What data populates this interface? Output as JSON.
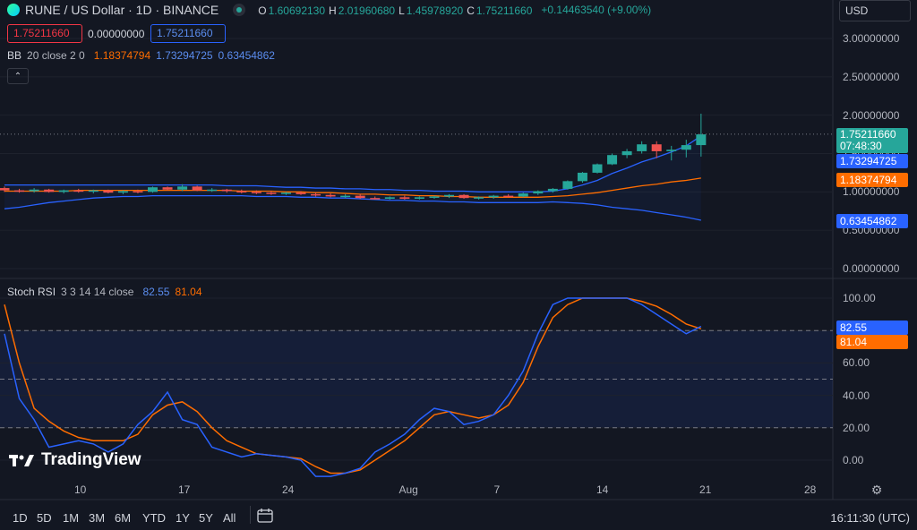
{
  "header": {
    "symbol": "RUNE / US Dollar · 1D · BINANCE",
    "ohlc": [
      {
        "label": "O",
        "value": "1.60692130"
      },
      {
        "label": "H",
        "value": "2.01960680"
      },
      {
        "label": "L",
        "value": "1.45978920"
      },
      {
        "label": "C",
        "value": "1.75211660"
      }
    ],
    "change": "+0.14463540 (+9.00%)",
    "sell_price": "1.75211660",
    "spread": "0.00000000",
    "buy_price": "1.75211660",
    "currency": "USD"
  },
  "indicators": {
    "bb": {
      "label": "BB",
      "params": "20 close 2 0",
      "basis": "1.18374794",
      "upper": "1.73294725",
      "lower": "0.63454862"
    },
    "stoch": {
      "label": "Stoch RSI",
      "params": "3 3 14 14 close",
      "k": "82.55",
      "d": "81.04"
    }
  },
  "price_axis": [
    "3.00000000",
    "2.50000000",
    "2.00000000",
    "1.50000000",
    "1.00000000",
    "0.50000000",
    "0.00000000"
  ],
  "price_tags": {
    "last": "1.75211660",
    "countdown": "07:48:30",
    "bb_upper": "1.73294725",
    "bb_basis": "1.18374794",
    "bb_lower": "0.63454862"
  },
  "stoch_axis": [
    "100.00",
    "80.00",
    "60.00",
    "40.00",
    "20.00",
    "0.00"
  ],
  "stoch_tags": {
    "k": "82.55",
    "d": "81.04"
  },
  "time_axis": [
    "10",
    "17",
    "24",
    "Aug",
    "7",
    "14",
    "21",
    "28"
  ],
  "timeframes": [
    "1D",
    "5D",
    "1M",
    "3M",
    "6M",
    "YTD",
    "1Y",
    "5Y",
    "All"
  ],
  "clock": "16:11:30 (UTC)",
  "logo_text": "TradingView",
  "colors": {
    "up": "#26a69a",
    "down": "#ef5350",
    "bb_band": "#2962ff",
    "bb_basis": "#ff6d00",
    "k_line": "#2962ff",
    "d_line": "#ff6d00"
  },
  "chart_data": {
    "type": "candlestick",
    "x": [
      "Jul 3",
      "Jul 4",
      "Jul 5",
      "Jul 6",
      "Jul 7",
      "Jul 8",
      "Jul 9",
      "Jul 10",
      "Jul 11",
      "Jul 12",
      "Jul 13",
      "Jul 14",
      "Jul 15",
      "Jul 16",
      "Jul 17",
      "Jul 18",
      "Jul 19",
      "Jul 20",
      "Jul 21",
      "Jul 22",
      "Jul 23",
      "Jul 24",
      "Jul 25",
      "Jul 26",
      "Jul 27",
      "Jul 28",
      "Jul 29",
      "Jul 30",
      "Jul 31",
      "Aug 1",
      "Aug 2",
      "Aug 3",
      "Aug 4",
      "Aug 5",
      "Aug 6",
      "Aug 7",
      "Aug 8",
      "Aug 9",
      "Aug 10",
      "Aug 11",
      "Aug 12",
      "Aug 13",
      "Aug 14",
      "Aug 15",
      "Aug 16",
      "Aug 17",
      "Aug 18",
      "Aug 19"
    ],
    "candles": [
      [
        1.05,
        1.07,
        1.0,
        1.02
      ],
      [
        1.02,
        1.04,
        0.99,
        1.01
      ],
      [
        1.01,
        1.05,
        0.99,
        1.03
      ],
      [
        1.03,
        1.04,
        0.99,
        1.0
      ],
      [
        1.0,
        1.03,
        0.98,
        1.02
      ],
      [
        1.02,
        1.04,
        0.99,
        1.01
      ],
      [
        1.01,
        1.03,
        0.98,
        1.02
      ],
      [
        1.02,
        1.03,
        0.98,
        0.99
      ],
      [
        0.99,
        1.02,
        0.97,
        1.01
      ],
      [
        1.01,
        1.03,
        0.98,
        1.0
      ],
      [
        1.0,
        1.07,
        0.99,
        1.06
      ],
      [
        1.06,
        1.07,
        1.02,
        1.03
      ],
      [
        1.03,
        1.1,
        1.01,
        1.07
      ],
      [
        1.07,
        1.08,
        1.01,
        1.02
      ],
      [
        1.02,
        1.05,
        1.0,
        1.03
      ],
      [
        1.03,
        1.04,
        0.99,
        1.01
      ],
      [
        1.01,
        1.03,
        0.98,
        1.0
      ],
      [
        1.0,
        1.02,
        0.97,
        0.99
      ],
      [
        0.99,
        1.01,
        0.96,
        0.98
      ],
      [
        0.98,
        1.0,
        0.96,
        0.99
      ],
      [
        0.99,
        1.01,
        0.96,
        0.97
      ],
      [
        0.97,
        0.99,
        0.94,
        0.96
      ],
      [
        0.96,
        0.98,
        0.93,
        0.94
      ],
      [
        0.94,
        0.97,
        0.92,
        0.95
      ],
      [
        0.95,
        0.97,
        0.91,
        0.92
      ],
      [
        0.92,
        0.94,
        0.9,
        0.91
      ],
      [
        0.91,
        0.94,
        0.9,
        0.93
      ],
      [
        0.93,
        0.95,
        0.9,
        0.91
      ],
      [
        0.91,
        0.94,
        0.9,
        0.93
      ],
      [
        0.93,
        0.95,
        0.91,
        0.94
      ],
      [
        0.94,
        0.97,
        0.92,
        0.96
      ],
      [
        0.96,
        0.97,
        0.91,
        0.92
      ],
      [
        0.92,
        0.94,
        0.9,
        0.93
      ],
      [
        0.93,
        0.96,
        0.91,
        0.95
      ],
      [
        0.95,
        0.97,
        0.93,
        0.94
      ],
      [
        0.94,
        0.99,
        0.93,
        0.98
      ],
      [
        0.98,
        1.02,
        0.96,
        1.01
      ],
      [
        1.01,
        1.05,
        0.99,
        1.04
      ],
      [
        1.04,
        1.15,
        1.03,
        1.14
      ],
      [
        1.14,
        1.26,
        1.12,
        1.25
      ],
      [
        1.25,
        1.37,
        1.24,
        1.36
      ],
      [
        1.36,
        1.5,
        1.35,
        1.48
      ],
      [
        1.48,
        1.56,
        1.44,
        1.53
      ],
      [
        1.53,
        1.66,
        1.5,
        1.62
      ],
      [
        1.62,
        1.66,
        1.44,
        1.53
      ],
      [
        1.53,
        1.6,
        1.41,
        1.55
      ],
      [
        1.55,
        1.68,
        1.45,
        1.61
      ],
      [
        1.61,
        2.02,
        1.46,
        1.75
      ]
    ],
    "bb_upper": [
      1.09,
      1.09,
      1.09,
      1.09,
      1.09,
      1.09,
      1.09,
      1.09,
      1.09,
      1.09,
      1.09,
      1.09,
      1.09,
      1.09,
      1.09,
      1.08,
      1.08,
      1.08,
      1.07,
      1.06,
      1.06,
      1.05,
      1.05,
      1.04,
      1.04,
      1.03,
      1.03,
      1.02,
      1.02,
      1.01,
      1.01,
      1.01,
      1.0,
      1.0,
      1.0,
      1.0,
      1.0,
      1.01,
      1.04,
      1.09,
      1.15,
      1.24,
      1.31,
      1.39,
      1.45,
      1.52,
      1.6,
      1.73
    ],
    "bb_basis": [
      1.01,
      1.01,
      1.01,
      1.01,
      1.01,
      1.02,
      1.02,
      1.02,
      1.02,
      1.02,
      1.02,
      1.02,
      1.02,
      1.02,
      1.02,
      1.02,
      1.01,
      1.01,
      1.01,
      1.0,
      1.0,
      0.99,
      0.99,
      0.98,
      0.97,
      0.97,
      0.96,
      0.96,
      0.95,
      0.95,
      0.94,
      0.94,
      0.93,
      0.93,
      0.93,
      0.93,
      0.93,
      0.94,
      0.95,
      0.97,
      0.99,
      1.02,
      1.05,
      1.08,
      1.1,
      1.13,
      1.15,
      1.18
    ],
    "bb_lower": [
      0.78,
      0.8,
      0.83,
      0.86,
      0.88,
      0.9,
      0.92,
      0.93,
      0.94,
      0.94,
      0.95,
      0.95,
      0.95,
      0.95,
      0.95,
      0.95,
      0.95,
      0.94,
      0.94,
      0.94,
      0.93,
      0.93,
      0.92,
      0.92,
      0.91,
      0.9,
      0.89,
      0.89,
      0.88,
      0.88,
      0.87,
      0.87,
      0.86,
      0.86,
      0.86,
      0.86,
      0.86,
      0.87,
      0.86,
      0.85,
      0.83,
      0.8,
      0.78,
      0.76,
      0.73,
      0.7,
      0.67,
      0.63
    ],
    "stoch_k": [
      78,
      38,
      25,
      8,
      10,
      12,
      10,
      5,
      10,
      22,
      30,
      42,
      25,
      22,
      8,
      5,
      2,
      4,
      3,
      2,
      0,
      -10,
      -10,
      -8,
      -5,
      5,
      10,
      16,
      25,
      32,
      30,
      22,
      24,
      28,
      40,
      55,
      78,
      96,
      100,
      100,
      100,
      100,
      100,
      96,
      90,
      84,
      78,
      82.55
    ],
    "stoch_d": [
      96,
      60,
      32,
      24,
      18,
      14,
      12,
      12,
      12,
      16,
      28,
      34,
      36,
      30,
      20,
      12,
      8,
      4,
      3,
      2,
      1,
      -4,
      -8,
      -8,
      -6,
      0,
      6,
      12,
      20,
      28,
      30,
      28,
      26,
      28,
      34,
      48,
      70,
      88,
      96,
      100,
      100,
      100,
      100,
      98,
      95,
      90,
      84,
      81.04
    ],
    "price_range": [
      0,
      3.2
    ],
    "stoch_range": [
      -10,
      110
    ],
    "stoch_levels": [
      80,
      50,
      20
    ]
  }
}
